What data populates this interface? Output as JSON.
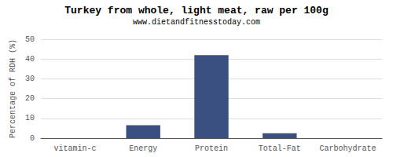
{
  "chart_data": {
    "type": "bar",
    "title": "Turkey from whole, light meat, raw per 100g",
    "subtitle": "www.dietandfitnesstoday.com",
    "categories": [
      "vitamin-c",
      "Energy",
      "Protein",
      "Total-Fat",
      "Carbohydrate"
    ],
    "values": [
      0,
      6.5,
      42,
      2.5,
      0
    ],
    "color": "#3a5080",
    "ylabel": "Percentage of RDH (%)",
    "ylim": [
      0,
      50
    ],
    "yticks": [
      0,
      10,
      20,
      30,
      40,
      50
    ],
    "grid": true
  }
}
